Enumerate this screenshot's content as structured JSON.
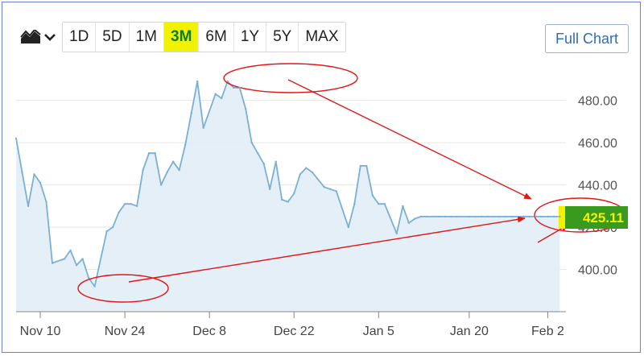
{
  "toolbar": {
    "ranges": [
      "1D",
      "5D",
      "1M",
      "3M",
      "6M",
      "1Y",
      "5Y",
      "MAX"
    ],
    "active_range": "3M",
    "full_chart_label": "Full Chart"
  },
  "colors": {
    "line": "#7ab0d6",
    "area": "#e2edf6",
    "annotation": "#e01818",
    "price_tag_bg": "#3a9a1e",
    "price_tag_text": "#f2f200"
  },
  "chart_data": {
    "type": "area",
    "ylim": [
      380,
      497
    ],
    "y_ticks": [
      400,
      420,
      440,
      460,
      480
    ],
    "y_tick_labels": [
      "400.00",
      "420.00",
      "440.00",
      "460.00",
      "480.00"
    ],
    "x_ticks": [
      {
        "label": "Nov 10",
        "date": "2023-11-10"
      },
      {
        "label": "Nov 24",
        "date": "2023-11-24"
      },
      {
        "label": "Dec 8",
        "date": "2023-12-08"
      },
      {
        "label": "Dec 22",
        "date": "2023-12-22"
      },
      {
        "label": "Jan 5",
        "date": "2024-01-05"
      },
      {
        "label": "Jan 20",
        "date": "2024-01-20"
      },
      {
        "label": "Feb 2",
        "date": "2024-02-02"
      }
    ],
    "x_range": [
      "2023-11-06",
      "2024-02-05"
    ],
    "series": [
      {
        "x": [
          "2023-11-06",
          "2023-11-07",
          "2023-11-08",
          "2023-11-09",
          "2023-11-10",
          "2023-11-11",
          "2023-11-12",
          "2023-11-14",
          "2023-11-15",
          "2023-11-16",
          "2023-11-17",
          "2023-11-18",
          "2023-11-19",
          "2023-11-21",
          "2023-11-22",
          "2023-11-23",
          "2023-11-24",
          "2023-11-25",
          "2023-11-26",
          "2023-11-27",
          "2023-11-28",
          "2023-11-29",
          "2023-11-30",
          "2023-12-01",
          "2023-12-02",
          "2023-12-03",
          "2023-12-04",
          "2023-12-05",
          "2023-12-06",
          "2023-12-07",
          "2023-12-09",
          "2023-12-10",
          "2023-12-11",
          "2023-12-12",
          "2023-12-13",
          "2023-12-14",
          "2023-12-15",
          "2023-12-16",
          "2023-12-17",
          "2023-12-18",
          "2023-12-19",
          "2023-12-20",
          "2023-12-21",
          "2023-12-22",
          "2023-12-23",
          "2023-12-24",
          "2023-12-25",
          "2023-12-27",
          "2023-12-28",
          "2023-12-29",
          "2023-12-31",
          "2024-01-01",
          "2024-01-02",
          "2024-01-03",
          "2024-01-04",
          "2024-01-05",
          "2024-01-06",
          "2024-01-08",
          "2024-01-09",
          "2024-01-10",
          "2024-01-11",
          "2024-01-12",
          "2024-01-13",
          "2024-01-15",
          "2024-01-16",
          "2024-01-17",
          "2024-01-18",
          "2024-01-20",
          "2024-01-21",
          "2024-01-22",
          "2024-01-23",
          "2024-01-24",
          "2024-01-25",
          "2024-01-26",
          "2024-01-27",
          "2024-01-28",
          "2024-01-29",
          "2024-01-30",
          "2024-01-31",
          "2024-02-01",
          "2024-02-02",
          "2024-02-03",
          "2024-02-04"
        ],
        "values": [
          462,
          446,
          430,
          445,
          441,
          432,
          403,
          405,
          409,
          402,
          405,
          396,
          392,
          418,
          420,
          427,
          431,
          431,
          430,
          447,
          455,
          455,
          440,
          446,
          451,
          447,
          459,
          474,
          489,
          467,
          483,
          481,
          489,
          486,
          486,
          476,
          460,
          455,
          450,
          438,
          451,
          433,
          432,
          436,
          445,
          448,
          446,
          439,
          438,
          437,
          420,
          431,
          449,
          449,
          435,
          431,
          431,
          417,
          430,
          422,
          424,
          425,
          425,
          425,
          425,
          425,
          425,
          425,
          425,
          425,
          425,
          425,
          425,
          425,
          425,
          425,
          425,
          425,
          425,
          425,
          425,
          425,
          425
        ]
      }
    ],
    "last_price": "425.11"
  }
}
